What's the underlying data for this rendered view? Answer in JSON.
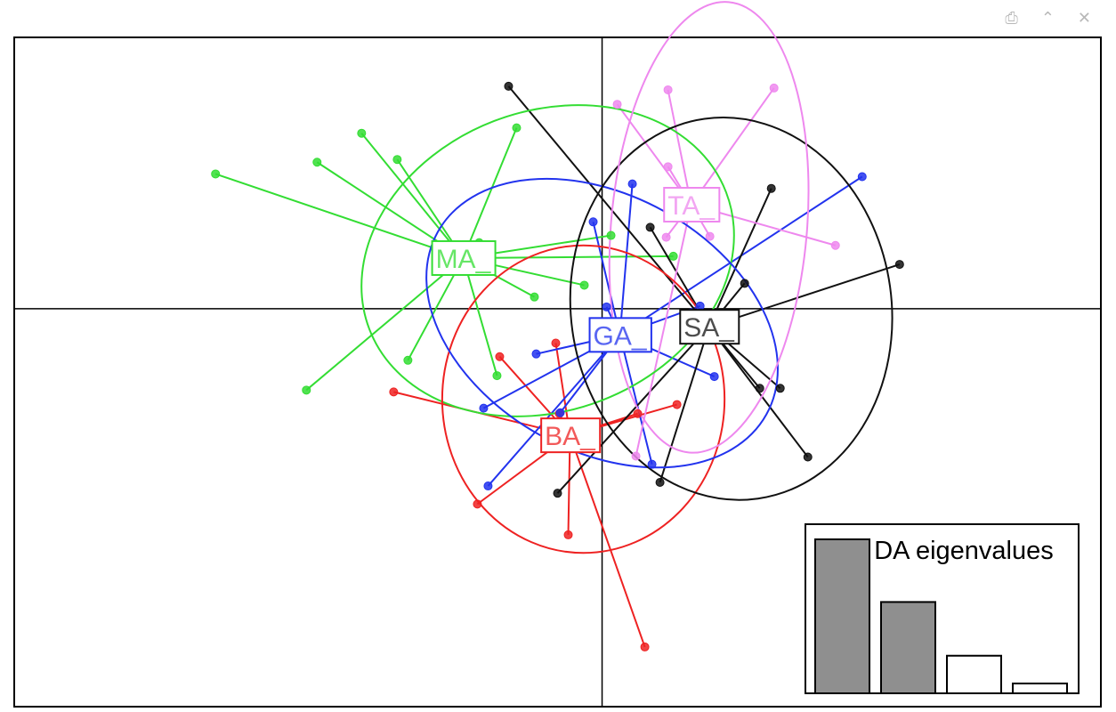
{
  "toolbar": {
    "icons": [
      "export-icon",
      "collapse-icon",
      "close-icon"
    ]
  },
  "chart_data": {
    "type": "scatter",
    "title": "",
    "xlabel": "",
    "ylabel": "",
    "xlim": [
      -6.6,
      5.6
    ],
    "ylim": [
      -4.4,
      3.0
    ],
    "axes_lines_at": [
      0,
      0
    ],
    "grid": false,
    "colors": {
      "MA_": "#33dd33",
      "BA_": "#ee2222",
      "GA_": "#2233ee",
      "SA_": "#111111",
      "TA_": "#ee88ee"
    },
    "groups": [
      {
        "name": "MA_",
        "centroid": [
          -1.56,
          0.56
        ],
        "points": [
          [
            -4.34,
            1.49
          ],
          [
            -3.2,
            1.62
          ],
          [
            -2.7,
            1.94
          ],
          [
            -2.3,
            1.65
          ],
          [
            -0.96,
            2.0
          ],
          [
            -1.38,
            0.73
          ],
          [
            0.1,
            0.81
          ],
          [
            0.8,
            0.58
          ],
          [
            -0.2,
            0.26
          ],
          [
            -0.76,
            0.13
          ],
          [
            -2.18,
            -0.57
          ],
          [
            -3.32,
            -0.9
          ],
          [
            -1.18,
            -0.74
          ]
        ],
        "ellipse": {
          "center": [
            -0.61,
            0.53
          ],
          "rx": 4.29,
          "ry": 3.31,
          "angle_deg": -21
        }
      },
      {
        "name": "BA_",
        "centroid": [
          -0.36,
          -1.4
        ],
        "points": [
          [
            -2.34,
            -0.92
          ],
          [
            -1.15,
            -0.53
          ],
          [
            -0.52,
            -0.38
          ],
          [
            0.84,
            -1.06
          ],
          [
            0.4,
            -1.16
          ],
          [
            -1.4,
            -2.16
          ],
          [
            -0.38,
            -2.5
          ],
          [
            0.48,
            -3.74
          ],
          [
            -0.48,
            -1.16
          ]
        ],
        "ellipse": {
          "center": [
            -0.21,
            -1.0
          ],
          "rx": 3.17,
          "ry": 3.4,
          "angle_deg": 0
        }
      },
      {
        "name": "GA_",
        "centroid": [
          0.2,
          -0.29
        ],
        "points": [
          [
            0.34,
            1.38
          ],
          [
            -0.1,
            0.96
          ],
          [
            -0.74,
            -0.5
          ],
          [
            -1.33,
            -1.1
          ],
          [
            -1.28,
            -1.96
          ],
          [
            -0.47,
            -1.15
          ],
          [
            0.56,
            -1.72
          ],
          [
            1.26,
            -0.75
          ],
          [
            1.1,
            0.03
          ],
          [
            2.92,
            1.46
          ],
          [
            0.05,
            0.02
          ]
        ],
        "ellipse": {
          "center": [
            0.0,
            -0.16
          ],
          "rx": 4.22,
          "ry": 2.83,
          "angle_deg": 29
        }
      },
      {
        "name": "SA_",
        "centroid": [
          1.2,
          -0.2
        ],
        "points": [
          [
            -1.05,
            2.46
          ],
          [
            0.54,
            0.9
          ],
          [
            1.9,
            1.33
          ],
          [
            1.6,
            0.28
          ],
          [
            3.34,
            0.49
          ],
          [
            2.0,
            -0.88
          ],
          [
            1.77,
            -0.88
          ],
          [
            2.31,
            -1.64
          ],
          [
            0.65,
            -1.92
          ],
          [
            -0.5,
            -2.04
          ],
          [
            1.05,
            -0.15
          ]
        ],
        "ellipse": {
          "center": [
            1.45,
            0.0
          ],
          "rx": 3.6,
          "ry": 4.24,
          "angle_deg": -8
        }
      },
      {
        "name": "TA_",
        "centroid": [
          1.0,
          1.15
        ],
        "points": [
          [
            0.17,
            2.26
          ],
          [
            0.74,
            2.42
          ],
          [
            1.93,
            2.44
          ],
          [
            0.74,
            1.57
          ],
          [
            0.72,
            0.79
          ],
          [
            1.21,
            0.8
          ],
          [
            2.62,
            0.7
          ],
          [
            0.38,
            -1.63
          ]
        ],
        "ellipse": {
          "center": [
            1.2,
            0.9
          ],
          "rx": 2.2,
          "ry": 5.0,
          "angle_deg": 5
        }
      }
    ],
    "inset": {
      "title": "DA eigenvalues",
      "values": [
        172,
        102,
        42,
        11
      ],
      "retained": 2
    }
  }
}
